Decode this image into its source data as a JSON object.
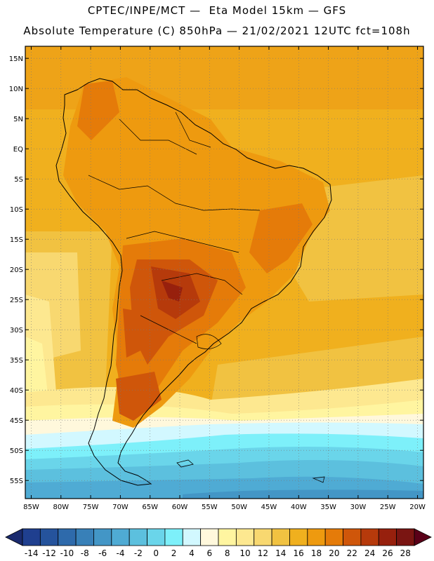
{
  "header": {
    "line1": "CPTEC/INPE/MCT —  Eta Model 15km — GFS",
    "line2": "Absolute Temperature (C) 850hPa — 21/02/2021 12UTC fct=108h"
  },
  "map": {
    "lon_range": [
      -86,
      -19
    ],
    "lat_range": [
      -58,
      17
    ],
    "lat_labels": [
      "15N",
      "10N",
      "5N",
      "EQ",
      "5S",
      "10S",
      "15S",
      "20S",
      "25S",
      "30S",
      "35S",
      "40S",
      "45S",
      "50S",
      "55S"
    ],
    "lon_labels": [
      "85W",
      "80W",
      "75W",
      "70W",
      "65W",
      "60W",
      "55W",
      "50W",
      "45W",
      "40W",
      "35W",
      "30W",
      "25W",
      "20W"
    ],
    "gridlines": "dotted"
  },
  "colorbar": {
    "labels": [
      "-14",
      "-12",
      "-10",
      "-8",
      "-6",
      "-4",
      "-2",
      "0",
      "2",
      "4",
      "6",
      "8",
      "10",
      "12",
      "14",
      "16",
      "18",
      "20",
      "22",
      "24",
      "26",
      "28"
    ],
    "colors": [
      "#1f3f8f",
      "#25539c",
      "#2e6aab",
      "#3880b8",
      "#4396c6",
      "#4fabd4",
      "#5cc0de",
      "#6ad5ea",
      "#7df0fa",
      "#d2f8ff",
      "#fff8dc",
      "#fff5a0",
      "#fde890",
      "#f8d870",
      "#f1c241",
      "#f0b01e",
      "#ee9a0f",
      "#e57b09",
      "#cf560a",
      "#b63a0b",
      "#97200d",
      "#7a1512"
    ],
    "under_color": "#1a2a6e",
    "over_color": "#5a0018"
  }
}
